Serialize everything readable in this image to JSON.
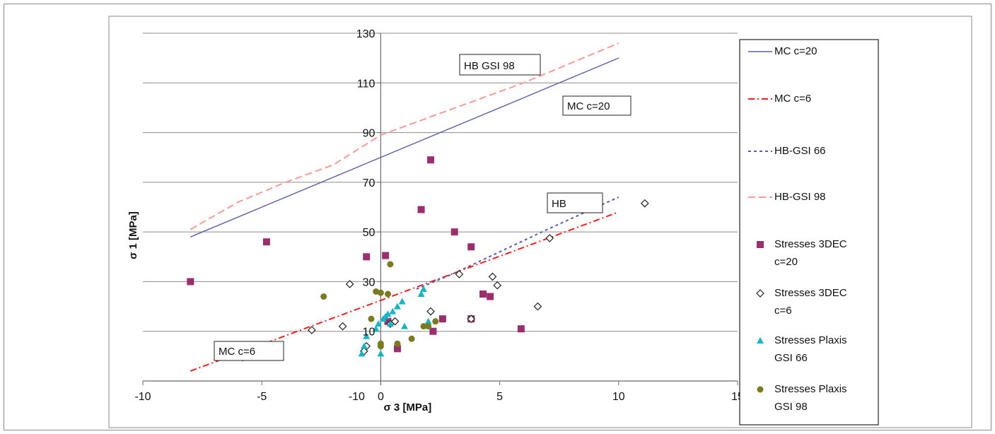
{
  "chart_data": {
    "type": "scatter",
    "xlabel": "σ 3 [MPa]",
    "ylabel": "σ 1 [MPa]",
    "xlim": [
      -10,
      15
    ],
    "ylim": [
      -10,
      130
    ],
    "x_ticks": [
      "-10",
      "-5",
      "0",
      "5",
      "10",
      "15"
    ],
    "y_ticks": [
      "10",
      "30",
      "50",
      "70",
      "90",
      "110",
      "130"
    ],
    "x_neg_label_near_origin": "-10",
    "grid": "horizontal",
    "legend_position": "right",
    "annotations": [
      {
        "text": "HB GSI 98"
      },
      {
        "text": "MC c=20"
      },
      {
        "text": "HB"
      },
      {
        "text": "MC c=6"
      }
    ],
    "series": [
      {
        "name": "MC c=20",
        "kind": "line",
        "color": "#5b5ea6",
        "dash": "solid",
        "points": [
          [
            -8,
            48
          ],
          [
            10,
            120
          ]
        ]
      },
      {
        "name": "MC c=6",
        "kind": "line",
        "color": "#e8231f",
        "dash": "dashdot",
        "points": [
          [
            -8,
            -6
          ],
          [
            10,
            58
          ]
        ]
      },
      {
        "name": "HB-GSI 66",
        "kind": "line",
        "color": "#5b5ea6",
        "dash": "dot",
        "points": [
          [
            1.5,
            27
          ],
          [
            3,
            33
          ],
          [
            5,
            42
          ],
          [
            7,
            51
          ],
          [
            10,
            64
          ]
        ]
      },
      {
        "name": "HB-GSI 98",
        "kind": "line",
        "color": "#f49b9b",
        "dash": "dash",
        "points": [
          [
            -8,
            51
          ],
          [
            -6,
            62
          ],
          [
            -4,
            70
          ],
          [
            -2,
            77
          ],
          [
            0,
            89
          ],
          [
            2,
            96
          ],
          [
            4,
            103
          ],
          [
            6,
            110
          ],
          [
            8,
            118
          ],
          [
            10,
            126
          ]
        ]
      },
      {
        "name": "Stresses 3DEC c=20",
        "kind": "square",
        "color": "#9b2f6e",
        "points": [
          [
            -8,
            30
          ],
          [
            -4.8,
            46
          ],
          [
            -0.6,
            40
          ],
          [
            0.2,
            40.5
          ],
          [
            2.1,
            79
          ],
          [
            1.7,
            59
          ],
          [
            3.1,
            50
          ],
          [
            3.8,
            44
          ],
          [
            7.3,
            59
          ],
          [
            4.3,
            25
          ],
          [
            4.6,
            24
          ],
          [
            2.6,
            15
          ],
          [
            2.2,
            10
          ],
          [
            3.8,
            15
          ],
          [
            5.9,
            11
          ],
          [
            0.7,
            3
          ],
          [
            0.3,
            14
          ]
        ]
      },
      {
        "name": "Stresses 3DEC c=6",
        "kind": "diamond",
        "color": "#222222",
        "points": [
          [
            -5.8,
            -0.5
          ],
          [
            -5.3,
            4
          ],
          [
            -2.9,
            10.5
          ],
          [
            -1.6,
            12
          ],
          [
            -1.3,
            29
          ],
          [
            -0.6,
            4
          ],
          [
            -0.7,
            2
          ],
          [
            0.6,
            14
          ],
          [
            0.4,
            13
          ],
          [
            2.1,
            18
          ],
          [
            3.3,
            33
          ],
          [
            3.8,
            15
          ],
          [
            4.7,
            32
          ],
          [
            4.9,
            28.5
          ],
          [
            6.6,
            20
          ],
          [
            7.1,
            47.5
          ],
          [
            11.1,
            61.5
          ]
        ]
      },
      {
        "name": "Stresses Plaxis GSI 66",
        "kind": "triangle",
        "color": "#1ab3c6",
        "points": [
          [
            -0.8,
            1
          ],
          [
            -0.7,
            4
          ],
          [
            -0.6,
            8
          ],
          [
            -0.2,
            11
          ],
          [
            -0.1,
            13
          ],
          [
            0.1,
            15
          ],
          [
            0.2,
            16
          ],
          [
            0.3,
            17
          ],
          [
            0.5,
            18
          ],
          [
            0.7,
            20
          ],
          [
            0.9,
            22
          ],
          [
            0,
            1
          ],
          [
            1,
            12
          ],
          [
            1.7,
            25
          ],
          [
            1.8,
            27
          ],
          [
            2.0,
            14
          ],
          [
            0.4,
            13
          ]
        ]
      },
      {
        "name": "Stresses Plaxis GSI 98",
        "kind": "circle",
        "color": "#7a7a20",
        "points": [
          [
            -4.7,
            0.5
          ],
          [
            -4.3,
            0.5
          ],
          [
            -2.4,
            24
          ],
          [
            -0.4,
            15
          ],
          [
            -0.2,
            26
          ],
          [
            0,
            25.5
          ],
          [
            0.3,
            25
          ],
          [
            0.4,
            37
          ],
          [
            0,
            5
          ],
          [
            0,
            4
          ],
          [
            0.7,
            5
          ],
          [
            1.3,
            7
          ],
          [
            1.8,
            12
          ],
          [
            2.0,
            12
          ],
          [
            2.3,
            14
          ]
        ]
      }
    ],
    "legend": [
      {
        "label": "MC c=20",
        "sub": ""
      },
      {
        "label": "MC c=6",
        "sub": ""
      },
      {
        "label": "HB-GSI 66",
        "sub": ""
      },
      {
        "label": "HB-GSI 98",
        "sub": ""
      },
      {
        "label": "Stresses 3DEC",
        "sub": "c=20"
      },
      {
        "label": "Stresses 3DEC",
        "sub": "c=6"
      },
      {
        "label": "Stresses Plaxis",
        "sub": "GSI 66"
      },
      {
        "label": "Stresses Plaxis",
        "sub": "GSI 98"
      }
    ]
  }
}
